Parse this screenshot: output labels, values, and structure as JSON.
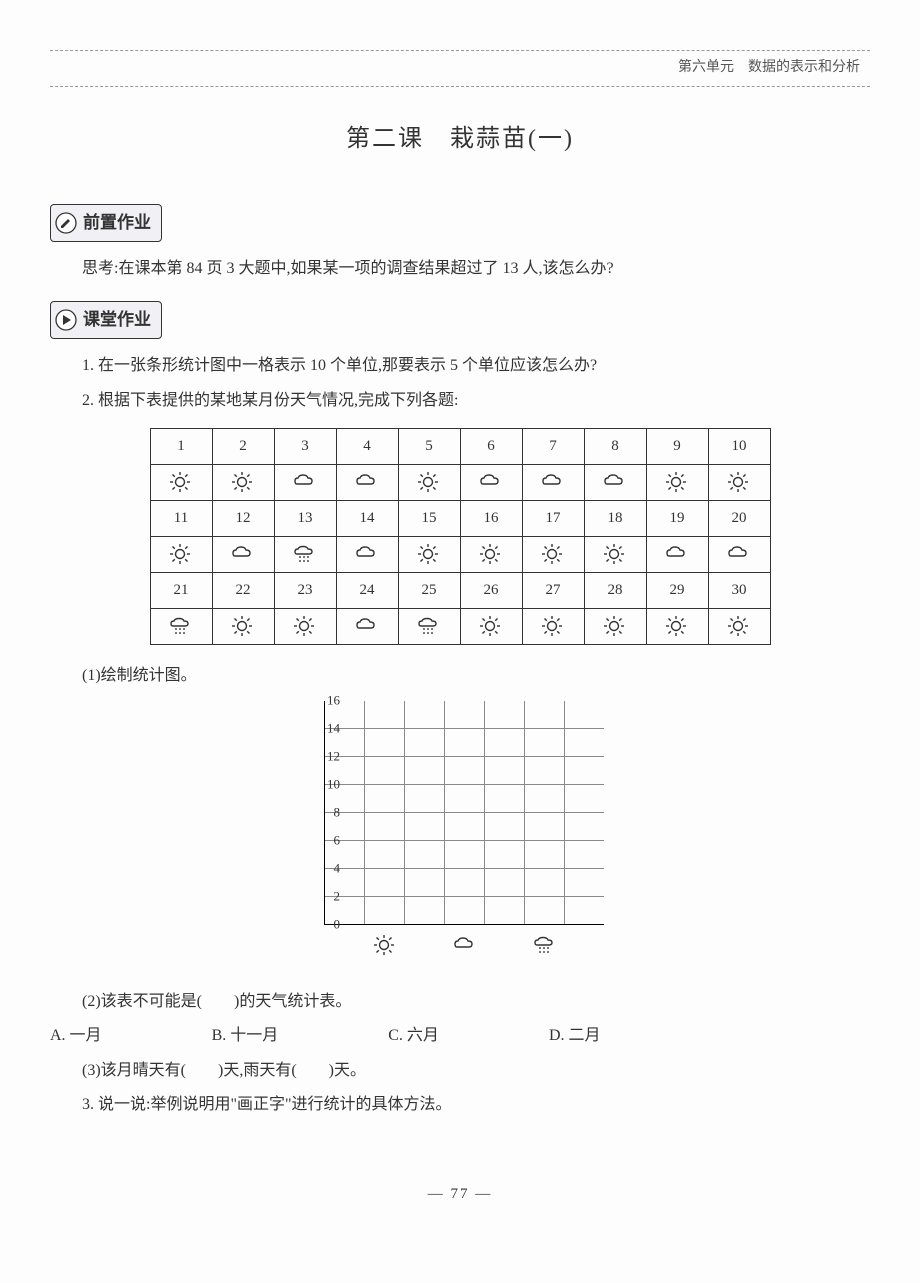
{
  "header": {
    "unit_label": "第六单元　数据的表示和分析"
  },
  "lesson": {
    "title": "第二课　栽蒜苗(一)"
  },
  "sections": {
    "pre": {
      "label": "前置作业"
    },
    "class": {
      "label": "课堂作业"
    }
  },
  "pre_question": "思考:在课本第 84 页 3 大题中,如果某一项的调查结果超过了 13 人,该怎么办?",
  "q1": "1. 在一张条形统计图中一格表示 10 个单位,那要表示 5 个单位应该怎么办?",
  "q2_intro": "2. 根据下表提供的某地某月份天气情况,完成下列各题:",
  "weather_table": {
    "days": [
      [
        "1",
        "2",
        "3",
        "4",
        "5",
        "6",
        "7",
        "8",
        "9",
        "10"
      ],
      [
        "11",
        "12",
        "13",
        "14",
        "15",
        "16",
        "17",
        "18",
        "19",
        "20"
      ],
      [
        "21",
        "22",
        "23",
        "24",
        "25",
        "26",
        "27",
        "28",
        "29",
        "30"
      ]
    ],
    "icons": [
      [
        "sun",
        "sun",
        "cloud",
        "cloud",
        "sun",
        "cloud",
        "cloud",
        "cloud",
        "sun",
        "sun"
      ],
      [
        "sun",
        "cloud",
        "rain",
        "cloud",
        "sun",
        "sun",
        "sun",
        "sun",
        "cloud",
        "cloud"
      ],
      [
        "rain",
        "sun",
        "sun",
        "cloud",
        "rain",
        "sun",
        "sun",
        "sun",
        "sun",
        "sun"
      ]
    ]
  },
  "q2_sub1": "(1)绘制统计图。",
  "chart": {
    "y_ticks": [
      "16",
      "14",
      "12",
      "10",
      "8",
      "6",
      "4",
      "2",
      "0"
    ],
    "x_categories": [
      "sun",
      "cloud",
      "rain"
    ]
  },
  "q2_sub2": "(2)该表不可能是(　　)的天气统计表。",
  "q2_options": {
    "A": "A. 一月",
    "B": "B. 十一月",
    "C": "C. 六月",
    "D": "D. 二月"
  },
  "q2_sub3": "(3)该月晴天有(　　)天,雨天有(　　)天。",
  "q3": "3. 说一说:举例说明用\"画正字\"进行统计的具体方法。",
  "page_number": "— 77 —",
  "colors": {
    "text": "#333333",
    "border": "#333333",
    "grid": "#888888",
    "dashed": "#999999",
    "background": "#fdfdfd"
  }
}
